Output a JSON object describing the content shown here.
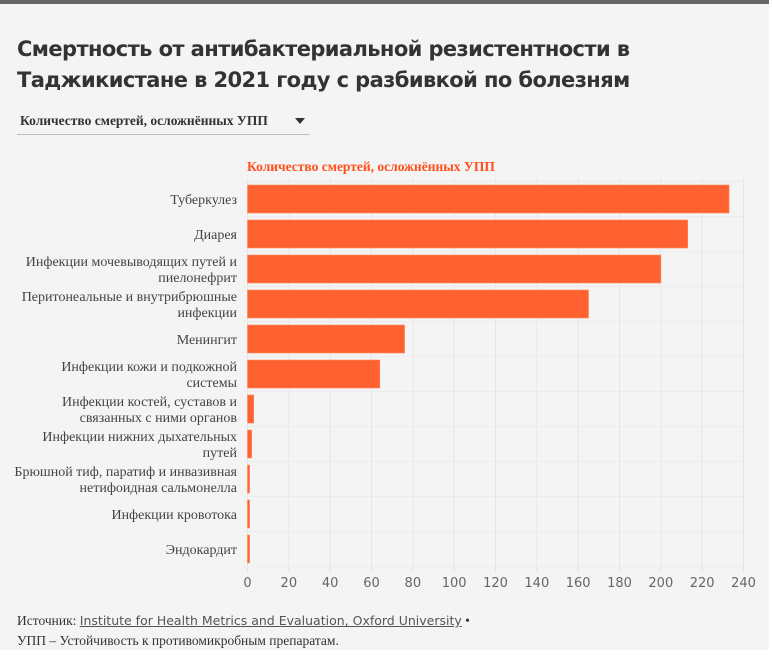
{
  "title": "Смертность от антибактериальной резистентности в Таджикистане в 2021 году с разбивкой по болезням",
  "dropdown": {
    "selected": "Количество смертей, осложнённых УПП"
  },
  "colors": {
    "bar": "#ff6130",
    "series_label": "#ff4f1a",
    "top_border": "#666666",
    "background": "#f4f4f4",
    "gridline": "#e6e6e6"
  },
  "chart_data": {
    "type": "bar",
    "orientation": "horizontal",
    "title": "Смертность от антибактериальной резистентности в Таджикистане в 2021 году с разбивкой по болезням",
    "series": [
      {
        "name": "Количество смертей, осложнённых УПП",
        "values": [
          233,
          213,
          200,
          165,
          76,
          64,
          3,
          2,
          1,
          1,
          1
        ]
      }
    ],
    "categories": [
      [
        "Туберкулез"
      ],
      [
        "Диарея"
      ],
      [
        "Инфекции мочевыводящих путей и",
        "пиелонефрит"
      ],
      [
        "Перитонеальные и внутрибрюшные",
        "инфекции"
      ],
      [
        "Менингит"
      ],
      [
        "Инфекции кожи и подкожной",
        "системы"
      ],
      [
        "Инфекции костей, суставов и",
        "связанных с ними органов"
      ],
      [
        "Инфекции нижних дыхательных",
        "путей"
      ],
      [
        "Брюшной тиф, паратиф и инвазивная",
        "нетифоидная сальмонелла"
      ],
      [
        "Инфекции кровотока"
      ],
      [
        "Эндокардит"
      ]
    ],
    "xlabel": "",
    "ylabel": "",
    "xlim": [
      0,
      240
    ],
    "xticks": [
      0,
      20,
      40,
      60,
      80,
      100,
      120,
      140,
      160,
      180,
      200,
      220,
      240
    ],
    "grid": true,
    "legend": "top-left (series label above bars)"
  },
  "footer": {
    "source_prefix": "Источник: ",
    "source_link": "Institute for Health Metrics and Evaluation, Oxford University",
    "separator": " •",
    "note": "УПП – Устойчивость к противомикробным препаратам."
  }
}
